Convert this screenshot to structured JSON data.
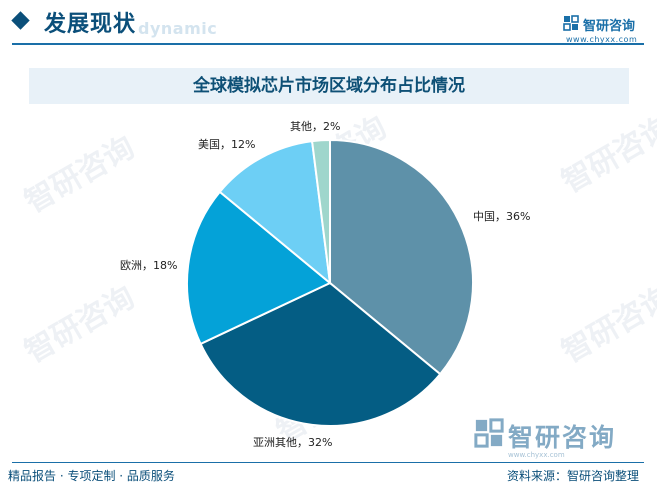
{
  "header": {
    "section_title": "发展现状",
    "ghost_text": "dynamic",
    "brand_name": "智研咨询",
    "brand_url": "www.chyxx.com"
  },
  "watermark": {
    "text": "智研咨询"
  },
  "chart_data": {
    "type": "pie",
    "title": "全球模拟芯片市场区域分布占比情况",
    "slices": [
      {
        "name": "中国",
        "value": 36,
        "label": "中国，36%",
        "color": "#5e91a9"
      },
      {
        "name": "亚洲其他",
        "value": 32,
        "label": "亚洲其他，32%",
        "color": "#045d84"
      },
      {
        "name": "欧洲",
        "value": 18,
        "label": "欧洲，18%",
        "color": "#04a2d8"
      },
      {
        "name": "美国",
        "value": 12,
        "label": "美国，12%",
        "color": "#6dcff5"
      },
      {
        "name": "其他",
        "value": 2,
        "label": "其他，2%",
        "color": "#9fd6cc"
      }
    ],
    "unit": "%",
    "start": "12 o'clock",
    "direction": "clockwise"
  },
  "bottom_brand": {
    "name": "智研咨询",
    "url": "www.chyxx.com"
  },
  "footer": {
    "left": "精品报告 · 专项定制 · 品质服务",
    "right": "资料来源：智研咨询整理"
  }
}
